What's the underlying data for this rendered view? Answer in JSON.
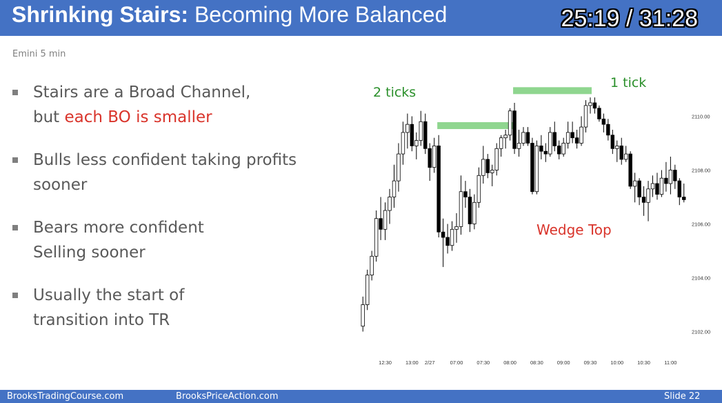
{
  "header": {
    "title_bold": "Shrinking Stairs:",
    "title_rest": " Becoming More Balanced",
    "timer": "25:19 / 31:28"
  },
  "subtitle": "Emini 5 min",
  "bullets": [
    {
      "parts": [
        {
          "text": "Stairs are a Broad Channel,",
          "red": false
        },
        {
          "text": "but ",
          "red": false,
          "br": true
        },
        {
          "text": "each BO is smaller",
          "red": true
        }
      ]
    },
    {
      "parts": [
        {
          "text": "Bulls less confident taking profits",
          "red": false
        },
        {
          "text": "sooner",
          "red": false,
          "br": true
        }
      ]
    },
    {
      "parts": [
        {
          "text": "Bears more confident",
          "red": false
        },
        {
          "text": "Selling sooner",
          "red": false,
          "br": true
        }
      ]
    },
    {
      "parts": [
        {
          "text": "Usually the start of",
          "red": false
        },
        {
          "text": "transition into TR",
          "red": false,
          "br": true
        }
      ]
    }
  ],
  "chart_data": {
    "type": "candlestick",
    "ylim": [
      2101.5,
      2111.5
    ],
    "y_ticks": [
      2102.0,
      2104.0,
      2106.0,
      2108.0,
      2110.0
    ],
    "y_tick_labels": [
      "2102.00",
      "2104.00",
      "2106.00",
      "2108.00",
      "2110.00"
    ],
    "x_ticks": [
      {
        "label": "12:30",
        "bar": 5
      },
      {
        "label": "13:00",
        "bar": 11
      },
      {
        "label": "2/27",
        "bar": 15
      },
      {
        "label": "07:00",
        "bar": 21
      },
      {
        "label": "07:30",
        "bar": 27
      },
      {
        "label": "08:00",
        "bar": 33
      },
      {
        "label": "08:30",
        "bar": 39
      },
      {
        "label": "09:00",
        "bar": 45
      },
      {
        "label": "09:30",
        "bar": 51
      },
      {
        "label": "10:00",
        "bar": 57
      },
      {
        "label": "10:30",
        "bar": 63
      },
      {
        "label": "11:00",
        "bar": 69
      }
    ],
    "bar_count": 73,
    "candles": [
      [
        2102.2,
        2103.3,
        2102.0,
        2103.0
      ],
      [
        2103.0,
        2104.3,
        2102.8,
        2104.1
      ],
      [
        2104.1,
        2105.0,
        2103.9,
        2104.8
      ],
      [
        2104.8,
        2106.5,
        2104.6,
        2106.2
      ],
      [
        2106.2,
        2107.0,
        2105.4,
        2105.8
      ],
      [
        2105.8,
        2106.8,
        2105.4,
        2106.5
      ],
      [
        2106.5,
        2107.3,
        2106.0,
        2107.0
      ],
      [
        2107.0,
        2108.2,
        2106.6,
        2107.6
      ],
      [
        2107.6,
        2109.0,
        2107.2,
        2108.6
      ],
      [
        2108.6,
        2109.8,
        2108.2,
        2109.4
      ],
      [
        2109.4,
        2110.1,
        2108.8,
        2109.7
      ],
      [
        2109.7,
        2110.0,
        2108.7,
        2108.9
      ],
      [
        2108.9,
        2109.4,
        2108.4,
        2109.1
      ],
      [
        2109.1,
        2110.2,
        2108.9,
        2109.8
      ],
      [
        2109.8,
        2110.1,
        2108.6,
        2108.8
      ],
      [
        2108.8,
        2109.0,
        2107.6,
        2108.1
      ],
      [
        2108.1,
        2109.2,
        2107.9,
        2108.9
      ],
      [
        2108.9,
        2109.3,
        2105.5,
        2105.7
      ],
      [
        2105.7,
        2106.2,
        2104.4,
        2105.5
      ],
      [
        2105.5,
        2106.0,
        2104.9,
        2105.2
      ],
      [
        2105.2,
        2106.1,
        2105.0,
        2105.8
      ],
      [
        2105.8,
        2106.4,
        2105.3,
        2105.9
      ],
      [
        2105.9,
        2107.8,
        2105.6,
        2107.2
      ],
      [
        2107.2,
        2107.6,
        2106.6,
        2107.0
      ],
      [
        2107.0,
        2107.3,
        2105.7,
        2106.0
      ],
      [
        2106.0,
        2107.1,
        2105.8,
        2106.8
      ],
      [
        2106.8,
        2108.1,
        2106.6,
        2107.8
      ],
      [
        2107.8,
        2108.9,
        2107.5,
        2108.4
      ],
      [
        2108.4,
        2108.6,
        2107.7,
        2107.9
      ],
      [
        2107.9,
        2108.2,
        2107.4,
        2108.0
      ],
      [
        2108.0,
        2109.0,
        2107.8,
        2108.8
      ],
      [
        2108.8,
        2109.3,
        2108.5,
        2109.2
      ],
      [
        2109.2,
        2109.5,
        2108.8,
        2109.3
      ],
      [
        2109.3,
        2110.3,
        2109.1,
        2110.2
      ],
      [
        2110.2,
        2110.5,
        2108.6,
        2108.8
      ],
      [
        2108.8,
        2109.5,
        2108.5,
        2109.0
      ],
      [
        2109.0,
        2109.6,
        2108.9,
        2109.4
      ],
      [
        2109.4,
        2109.6,
        2108.9,
        2109.0
      ],
      [
        2109.0,
        2109.2,
        2107.1,
        2107.2
      ],
      [
        2107.2,
        2109.1,
        2107.1,
        2108.9
      ],
      [
        2108.9,
        2109.3,
        2108.4,
        2108.7
      ],
      [
        2108.7,
        2109.0,
        2108.3,
        2108.6
      ],
      [
        2108.6,
        2109.6,
        2108.5,
        2109.4
      ],
      [
        2109.4,
        2109.8,
        2108.7,
        2108.9
      ],
      [
        2108.9,
        2109.1,
        2108.4,
        2108.6
      ],
      [
        2108.6,
        2109.2,
        2108.5,
        2109.0
      ],
      [
        2109.0,
        2109.8,
        2108.8,
        2109.4
      ],
      [
        2109.4,
        2109.8,
        2109.0,
        2109.2
      ],
      [
        2109.2,
        2109.5,
        2108.8,
        2109.0
      ],
      [
        2109.0,
        2110.0,
        2108.9,
        2109.6
      ],
      [
        2109.6,
        2110.6,
        2109.4,
        2110.4
      ],
      [
        2110.4,
        2110.7,
        2110.1,
        2110.5
      ],
      [
        2110.5,
        2110.7,
        2110.1,
        2110.3
      ],
      [
        2110.3,
        2110.4,
        2109.8,
        2109.9
      ],
      [
        2109.9,
        2110.1,
        2109.4,
        2109.7
      ],
      [
        2109.7,
        2109.9,
        2109.1,
        2109.3
      ],
      [
        2109.3,
        2109.5,
        2108.6,
        2108.8
      ],
      [
        2108.8,
        2109.1,
        2108.3,
        2108.9
      ],
      [
        2108.9,
        2109.2,
        2108.2,
        2108.4
      ],
      [
        2108.4,
        2108.9,
        2108.3,
        2108.6
      ],
      [
        2108.6,
        2108.7,
        2107.3,
        2107.4
      ],
      [
        2107.4,
        2107.9,
        2106.8,
        2107.6
      ],
      [
        2107.6,
        2107.7,
        2106.7,
        2107.0
      ],
      [
        2107.0,
        2107.4,
        2106.3,
        2106.8
      ],
      [
        2106.8,
        2107.6,
        2106.1,
        2107.3
      ],
      [
        2107.3,
        2107.8,
        2107.0,
        2107.5
      ],
      [
        2107.5,
        2107.9,
        2106.9,
        2107.1
      ],
      [
        2107.1,
        2108.0,
        2107.0,
        2107.7
      ],
      [
        2107.7,
        2108.3,
        2107.2,
        2107.5
      ],
      [
        2107.5,
        2108.5,
        2107.1,
        2108.0
      ],
      [
        2108.0,
        2108.2,
        2107.3,
        2107.6
      ],
      [
        2107.6,
        2107.7,
        2106.7,
        2107.0
      ],
      [
        2107.0,
        2107.5,
        2106.8,
        2106.9
      ]
    ],
    "annotations": [
      {
        "text": "2 ticks",
        "color": "#2a8f2a"
      },
      {
        "text": "1 tick",
        "color": "#2a8f2a"
      },
      {
        "text": "Wedge Top",
        "color": "#d9342b"
      }
    ],
    "highlight_color": "#8fd68f"
  },
  "footer": {
    "left": "BrooksTradingCourse.com",
    "center": "BrooksPriceAction.com",
    "right": "Slide  22"
  }
}
